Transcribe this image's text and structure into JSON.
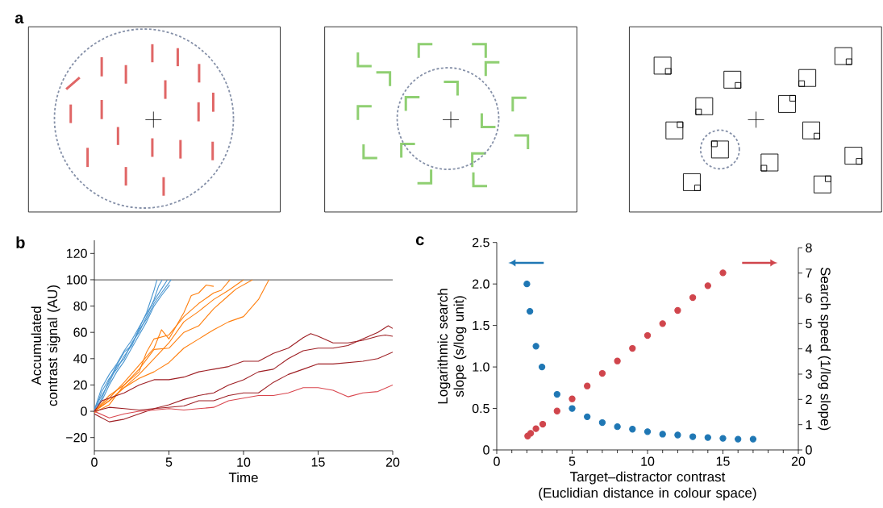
{
  "chart_data": [
    {
      "type": "other",
      "annotations": [
        "a"
      ]
    },
    {
      "type": "line",
      "annotations": [
        "b"
      ],
      "xlabel": "Time",
      "ylabel": "Accumulated contrast signal (AU)",
      "xlim": [
        0,
        20
      ],
      "xticks": [
        0,
        5,
        10,
        15,
        20
      ],
      "ylim": [
        -30,
        130
      ],
      "yticks": [
        {
          "value": -20,
          "label": "−20"
        },
        0,
        20,
        40,
        60,
        80,
        100,
        120
      ],
      "marker": "none",
      "ref_lines": [
        {
          "axis": "y",
          "value": 100,
          "color": "#333333"
        }
      ],
      "series": [
        {
          "color": "#4a96d0",
          "x": [
            0,
            0.5,
            1,
            1.5,
            2,
            2.5,
            3,
            3.5,
            4,
            4.2
          ],
          "values": [
            0,
            15,
            25,
            32,
            42,
            50,
            63,
            75,
            92,
            100
          ]
        },
        {
          "color": "#4a96d0",
          "x": [
            0,
            0.5,
            1,
            1.5,
            2,
            2.5,
            3,
            3.5,
            4,
            4.3,
            4.55
          ],
          "values": [
            2,
            12,
            22,
            34,
            40,
            52,
            60,
            72,
            85,
            95,
            100
          ]
        },
        {
          "color": "#4a96d0",
          "x": [
            0,
            0.5,
            1,
            1.5,
            2,
            2.5,
            3,
            3.5,
            4,
            4.5,
            5.15
          ],
          "values": [
            -1,
            10,
            24,
            35,
            45,
            50,
            62,
            70,
            82,
            90,
            100
          ]
        },
        {
          "color": "#4a96d0",
          "x": [
            0,
            0.5,
            1,
            1.5,
            2,
            2.5,
            3,
            3.5,
            4,
            4.5,
            4.9
          ],
          "values": [
            1,
            18,
            28,
            36,
            46,
            54,
            64,
            74,
            84,
            93,
            100
          ]
        },
        {
          "color": "#4a96d0",
          "x": [
            0,
            0.5,
            1,
            1.5,
            2,
            2.5,
            3,
            3.5,
            4,
            4.5,
            5.05
          ],
          "values": [
            3,
            8,
            20,
            30,
            38,
            48,
            58,
            68,
            80,
            88,
            96
          ]
        },
        {
          "color": "#ff7f0e",
          "x": [
            0,
            1,
            2,
            3,
            4,
            4.5,
            5,
            6,
            6.5,
            7,
            7.5,
            8
          ],
          "values": [
            0,
            10,
            22,
            35,
            48,
            62,
            55,
            75,
            88,
            90,
            96,
            95
          ]
        },
        {
          "color": "#ff7f0e",
          "x": [
            0,
            1,
            2,
            3,
            3.5,
            4,
            5,
            6,
            7,
            8,
            8.5,
            9.1
          ],
          "values": [
            0,
            12,
            20,
            30,
            45,
            55,
            58,
            72,
            82,
            90,
            92,
            100
          ]
        },
        {
          "color": "#ff7f0e",
          "x": [
            0,
            1,
            2,
            3,
            4,
            5,
            6,
            7,
            8,
            9,
            10
          ],
          "values": [
            0,
            8,
            18,
            28,
            40,
            52,
            68,
            76,
            85,
            92,
            100
          ]
        },
        {
          "color": "#ff7f0e",
          "x": [
            0,
            1,
            2,
            3,
            4,
            5,
            6,
            7,
            8,
            9,
            9.5,
            10.6
          ],
          "values": [
            -1,
            5,
            20,
            32,
            47,
            48,
            60,
            65,
            78,
            88,
            93,
            100
          ]
        },
        {
          "color": "#ff7f0e",
          "x": [
            0,
            1,
            2,
            3,
            4,
            5,
            6,
            7,
            8,
            9,
            10,
            11,
            11.7
          ],
          "values": [
            0,
            8,
            18,
            25,
            30,
            37,
            48,
            55,
            62,
            68,
            72,
            85,
            100
          ]
        },
        {
          "color": "#9e1f24",
          "x": [
            0,
            0.5,
            1,
            2,
            3,
            3.5,
            4,
            5,
            6,
            7,
            8,
            9,
            10,
            11,
            12,
            13,
            14,
            14.5,
            15,
            16,
            17,
            18,
            19,
            19.5,
            20
          ],
          "values": [
            0,
            8,
            10,
            14,
            20,
            22,
            24,
            24,
            26,
            30,
            32,
            34,
            38,
            38,
            44,
            48,
            56,
            59,
            57,
            52,
            52,
            54,
            57,
            58,
            57
          ]
        },
        {
          "color": "#9e1f24",
          "x": [
            0,
            1,
            2,
            3,
            4,
            5,
            6,
            7,
            8,
            9,
            10,
            11,
            12,
            13,
            14,
            15,
            16,
            17,
            18,
            19,
            19.7,
            20
          ],
          "values": [
            0,
            3,
            2,
            1,
            2,
            5,
            9,
            12,
            14,
            20,
            24,
            30,
            32,
            40,
            46,
            48,
            48,
            50,
            55,
            60,
            65,
            63
          ]
        },
        {
          "color": "#9e1f24",
          "x": [
            0,
            1,
            2,
            3,
            4,
            5,
            6,
            7,
            8,
            9,
            10,
            11,
            12,
            13,
            14,
            15,
            16,
            17,
            18,
            19,
            20
          ],
          "values": [
            -2,
            -8,
            -6,
            -2,
            2,
            3,
            4,
            8,
            8,
            12,
            14,
            14,
            22,
            28,
            32,
            36,
            36,
            37,
            38,
            40,
            45
          ]
        },
        {
          "color": "#d9464e",
          "x": [
            0,
            1,
            2,
            3,
            4,
            5,
            6,
            7,
            8,
            9,
            10,
            11,
            12,
            13,
            14,
            15,
            16,
            17,
            18,
            19,
            20
          ],
          "values": [
            0,
            -5,
            -2,
            0,
            1,
            2,
            1,
            2,
            3,
            8,
            10,
            12,
            12,
            14,
            18,
            18,
            16,
            11,
            14,
            15,
            20
          ]
        }
      ]
    },
    {
      "type": "scatter",
      "annotations": [
        "c"
      ],
      "xlabel": "Target–distractor contrast (Euclidian distance in colour space)",
      "ylabel": "Logarithmic search slope (s/log unit)",
      "y2label": "Search speed (1/log slope)",
      "xlim": [
        0,
        20
      ],
      "xticks": [
        0,
        5,
        10,
        15,
        20
      ],
      "ylim": [
        0,
        2.5
      ],
      "yticks": [
        0,
        0.5,
        {
          "value": 1,
          "label": "1.0"
        },
        1.5,
        {
          "value": 2,
          "label": "2.0"
        },
        2.5
      ],
      "y2lim": [
        0,
        8
      ],
      "y2ticks": [
        0,
        1,
        2,
        3,
        4,
        5,
        6,
        7,
        8
      ],
      "marker": "circle",
      "series": [
        {
          "color": "#1f77b4",
          "x": [
            2,
            2.2,
            2.6,
            3,
            4,
            5,
            6,
            7,
            8,
            9,
            10,
            11,
            12,
            13,
            14,
            15,
            16,
            17
          ],
          "values": [
            2.0,
            1.67,
            1.25,
            1.0,
            0.67,
            0.5,
            0.4,
            0.33,
            0.28,
            0.25,
            0.22,
            0.19,
            0.18,
            0.16,
            0.15,
            0.14,
            0.13,
            0.13
          ]
        },
        {
          "color": "#d0454c",
          "axis": "y2",
          "x": [
            2.05,
            2.25,
            2.6,
            3.05,
            4,
            5,
            6,
            7,
            8,
            9,
            10,
            11,
            12,
            13,
            14,
            15
          ],
          "values": [
            0.55,
            0.66,
            0.84,
            1.02,
            1.54,
            2.02,
            2.53,
            3.03,
            3.52,
            4.02,
            4.53,
            5.0,
            5.52,
            6.03,
            6.5,
            7.01
          ]
        }
      ]
    }
  ]
}
